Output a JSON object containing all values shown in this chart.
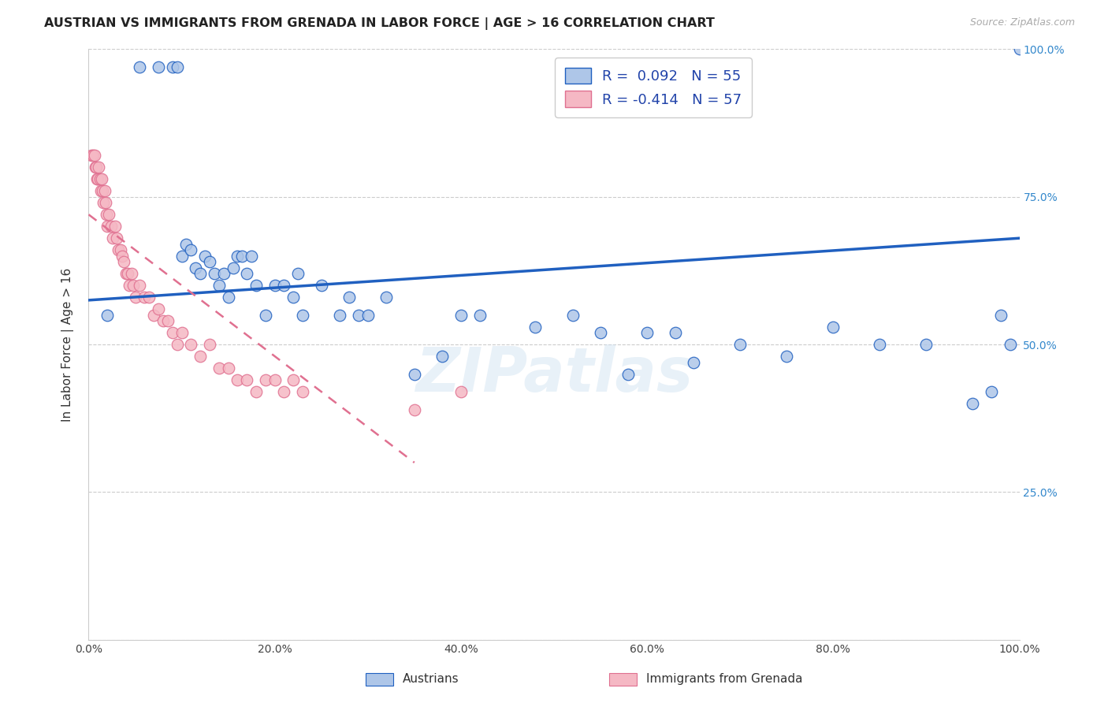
{
  "title": "AUSTRIAN VS IMMIGRANTS FROM GRENADA IN LABOR FORCE | AGE > 16 CORRELATION CHART",
  "source": "Source: ZipAtlas.com",
  "ylabel": "In Labor Force | Age > 16",
  "xlim": [
    0.0,
    1.0
  ],
  "ylim": [
    0.0,
    1.0
  ],
  "xticks": [
    0.0,
    0.2,
    0.4,
    0.6,
    0.8,
    1.0
  ],
  "yticks": [
    0.0,
    0.25,
    0.5,
    0.75,
    1.0
  ],
  "xticklabels": [
    "0.0%",
    "20.0%",
    "40.0%",
    "60.0%",
    "80.0%",
    "100.0%"
  ],
  "yticklabels_right": [
    "",
    "25.0%",
    "50.0%",
    "75.0%",
    "100.0%"
  ],
  "blue_color": "#aec6e8",
  "pink_color": "#f5b8c4",
  "line_blue": "#2060c0",
  "line_pink": "#e07090",
  "background": "#ffffff",
  "austrians_x": [
    0.02,
    0.055,
    0.075,
    0.09,
    0.095,
    0.1,
    0.105,
    0.11,
    0.115,
    0.12,
    0.125,
    0.13,
    0.135,
    0.14,
    0.145,
    0.15,
    0.155,
    0.16,
    0.165,
    0.17,
    0.175,
    0.18,
    0.19,
    0.2,
    0.21,
    0.22,
    0.225,
    0.23,
    0.25,
    0.27,
    0.28,
    0.29,
    0.3,
    0.32,
    0.35,
    0.38,
    0.4,
    0.42,
    0.48,
    0.52,
    0.55,
    0.58,
    0.6,
    0.63,
    0.65,
    0.7,
    0.75,
    0.8,
    0.85,
    0.9,
    0.95,
    0.97,
    0.98,
    0.99,
    1.0
  ],
  "austrians_y": [
    0.55,
    0.97,
    0.97,
    0.97,
    0.97,
    0.65,
    0.67,
    0.66,
    0.63,
    0.62,
    0.65,
    0.64,
    0.62,
    0.6,
    0.62,
    0.58,
    0.63,
    0.65,
    0.65,
    0.62,
    0.65,
    0.6,
    0.55,
    0.6,
    0.6,
    0.58,
    0.62,
    0.55,
    0.6,
    0.55,
    0.58,
    0.55,
    0.55,
    0.58,
    0.45,
    0.48,
    0.55,
    0.55,
    0.53,
    0.55,
    0.52,
    0.45,
    0.52,
    0.52,
    0.47,
    0.5,
    0.48,
    0.53,
    0.5,
    0.5,
    0.4,
    0.42,
    0.55,
    0.5,
    1.0
  ],
  "grenada_x": [
    0.003,
    0.005,
    0.006,
    0.007,
    0.008,
    0.009,
    0.01,
    0.011,
    0.012,
    0.013,
    0.014,
    0.015,
    0.016,
    0.017,
    0.018,
    0.019,
    0.02,
    0.022,
    0.024,
    0.026,
    0.028,
    0.03,
    0.032,
    0.034,
    0.036,
    0.038,
    0.04,
    0.042,
    0.044,
    0.046,
    0.048,
    0.05,
    0.055,
    0.06,
    0.065,
    0.07,
    0.075,
    0.08,
    0.085,
    0.09,
    0.095,
    0.1,
    0.11,
    0.12,
    0.13,
    0.14,
    0.15,
    0.16,
    0.17,
    0.18,
    0.19,
    0.2,
    0.21,
    0.22,
    0.23,
    0.35,
    0.4
  ],
  "grenada_y": [
    0.82,
    0.82,
    0.82,
    0.8,
    0.8,
    0.78,
    0.78,
    0.8,
    0.78,
    0.76,
    0.78,
    0.76,
    0.74,
    0.76,
    0.74,
    0.72,
    0.7,
    0.72,
    0.7,
    0.68,
    0.7,
    0.68,
    0.66,
    0.66,
    0.65,
    0.64,
    0.62,
    0.62,
    0.6,
    0.62,
    0.6,
    0.58,
    0.6,
    0.58,
    0.58,
    0.55,
    0.56,
    0.54,
    0.54,
    0.52,
    0.5,
    0.52,
    0.5,
    0.48,
    0.5,
    0.46,
    0.46,
    0.44,
    0.44,
    0.42,
    0.44,
    0.44,
    0.42,
    0.44,
    0.42,
    0.39,
    0.42
  ],
  "blue_line_x0": 0.0,
  "blue_line_x1": 1.0,
  "blue_line_y0": 0.575,
  "blue_line_y1": 0.68,
  "pink_line_x0": 0.0,
  "pink_line_x1": 0.35,
  "pink_line_y0": 0.72,
  "pink_line_y1": 0.3
}
